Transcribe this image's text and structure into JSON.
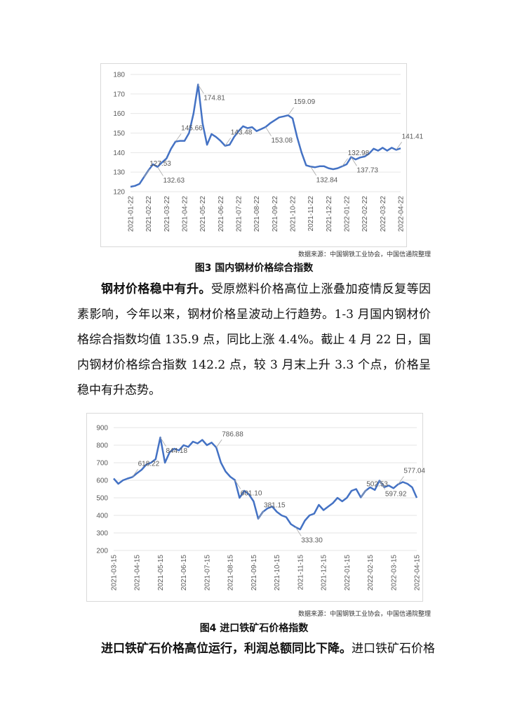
{
  "chart_data": [
    {
      "type": "line",
      "title": "图3 国内钢材价格综合指数",
      "source": "数据来源：中国钢铁工业协会，中国信通院整理",
      "categories": [
        "2021-01-22",
        null,
        null,
        null,
        "2021-02-22",
        null,
        null,
        null,
        "2021-03-22",
        null,
        null,
        null,
        "2021-04-22",
        null,
        null,
        null,
        "2021-05-22",
        null,
        null,
        null,
        "2021-06-22",
        null,
        null,
        null,
        "2021-07-22",
        null,
        null,
        null,
        "2021-08-22",
        null,
        null,
        null,
        "2021-09-22",
        null,
        null,
        null,
        "2021-10-22",
        null,
        null,
        null,
        "2021-11-22",
        null,
        null,
        null,
        "2021-12-22",
        null,
        null,
        null,
        "2022-01-22",
        null,
        null,
        null,
        "2022-02-22",
        null,
        null,
        null,
        "2022-03-22",
        null,
        null,
        null,
        "2022-04-22"
      ],
      "series": [
        {
          "color": "#4472c4",
          "values": [
            122.5,
            123,
            124,
            127.53,
            131,
            134,
            132.63,
            135,
            137,
            142,
            145.66,
            146,
            146,
            150,
            160,
            174.81,
            155,
            144,
            149.5,
            148,
            146,
            143.48,
            144,
            148,
            151,
            153.5,
            152.5,
            153,
            151,
            152,
            153.08,
            155,
            156.5,
            158,
            158.5,
            159.09,
            157.5,
            148,
            140,
            133.5,
            132.84,
            132.5,
            133,
            133,
            132,
            131.5,
            132,
            132.98,
            134,
            137.73,
            136.5,
            137.5,
            138,
            139.5,
            142,
            141,
            142.5,
            141,
            142.5,
            141.41,
            142.2
          ],
          "value_labels": [
            null,
            null,
            null,
            "127.53",
            null,
            null,
            "132.63",
            null,
            null,
            null,
            "145.66",
            null,
            null,
            null,
            null,
            "174.81",
            null,
            null,
            null,
            null,
            null,
            "143.48",
            null,
            null,
            null,
            null,
            null,
            null,
            null,
            null,
            "153.08",
            null,
            null,
            null,
            null,
            "159.09",
            null,
            null,
            null,
            null,
            "132.84",
            null,
            null,
            null,
            null,
            null,
            null,
            "132.98",
            null,
            "137.73",
            null,
            null,
            null,
            null,
            null,
            null,
            null,
            null,
            null,
            "141.41",
            null
          ]
        }
      ],
      "ylim": [
        120,
        180
      ],
      "yticks": [
        120,
        130,
        140,
        150,
        160,
        170,
        180
      ],
      "grid": true
    },
    {
      "type": "line",
      "title": "图4 进口铁矿石价格指数",
      "source": "数据来源：中国钢铁工业协会，中国信通院整理",
      "categories": [
        "2021-03-15",
        null,
        null,
        null,
        null,
        "2021-04-15",
        null,
        null,
        null,
        null,
        "2021-05-15",
        null,
        null,
        null,
        null,
        "2021-06-15",
        null,
        null,
        null,
        null,
        "2021-07-15",
        null,
        null,
        null,
        null,
        "2021-08-15",
        null,
        null,
        null,
        null,
        "2021-09-15",
        null,
        null,
        null,
        null,
        "2021-10-15",
        null,
        null,
        null,
        null,
        "2021-11-15",
        null,
        null,
        null,
        null,
        "2021-12-15",
        null,
        null,
        null,
        null,
        "2022-01-15",
        null,
        null,
        null,
        null,
        "2022-02-15",
        null,
        null,
        null,
        null,
        "2022-03-15",
        null,
        null,
        null,
        null,
        "2022-04-15"
      ],
      "series": [
        {
          "color": "#4472c4",
          "values": [
            610,
            580,
            600,
            610,
            618.22,
            640,
            660,
            690,
            700,
            720,
            844.18,
            700,
            760,
            780,
            770,
            800,
            790,
            820,
            810,
            830,
            800,
            815,
            786.88,
            700,
            650,
            620,
            601.1,
            500,
            540,
            520,
            480,
            381.15,
            420,
            440,
            450,
            420,
            400,
            390,
            350,
            333.3,
            320,
            370,
            400,
            410,
            460,
            430,
            450,
            470,
            500,
            480,
            500,
            540,
            550,
            502.53,
            540,
            560,
            545,
            597.92,
            560,
            570,
            555,
            577.04,
            590,
            580,
            560,
            500
          ],
          "value_labels": [
            null,
            null,
            null,
            null,
            "618.22",
            null,
            null,
            null,
            null,
            null,
            "844.18",
            null,
            null,
            null,
            null,
            null,
            null,
            null,
            null,
            null,
            null,
            null,
            "786.88",
            null,
            null,
            null,
            "601.10",
            null,
            null,
            null,
            null,
            "381.15",
            null,
            null,
            null,
            null,
            null,
            null,
            null,
            "333.30",
            null,
            null,
            null,
            null,
            null,
            null,
            null,
            null,
            null,
            null,
            null,
            null,
            null,
            "502.53",
            null,
            null,
            null,
            "597.92",
            null,
            null,
            null,
            "577.04",
            null,
            null,
            null,
            null
          ]
        }
      ],
      "ylim": [
        200,
        900
      ],
      "yticks": [
        200,
        300,
        400,
        500,
        600,
        700,
        800,
        900
      ],
      "grid": true
    }
  ],
  "paragraphs": [
    {
      "lead": "钢材价格稳中有升。",
      "text": "受原燃料价格高位上涨叠加疫情反复等因素影响，今年以来，钢材价格呈波动上行趋势。1-3 月国内钢材价格综合指数均值 135.9 点，同比上涨 4.4%。截止 4 月 22 日，国内钢材价格综合指数 142.2 点，较 3 月末上升 3.3 个点，价格呈稳中有升态势。"
    },
    {
      "lead": "进口铁矿石价格高位运行，利润总额同比下降。",
      "text": "进口铁矿石价格"
    }
  ]
}
